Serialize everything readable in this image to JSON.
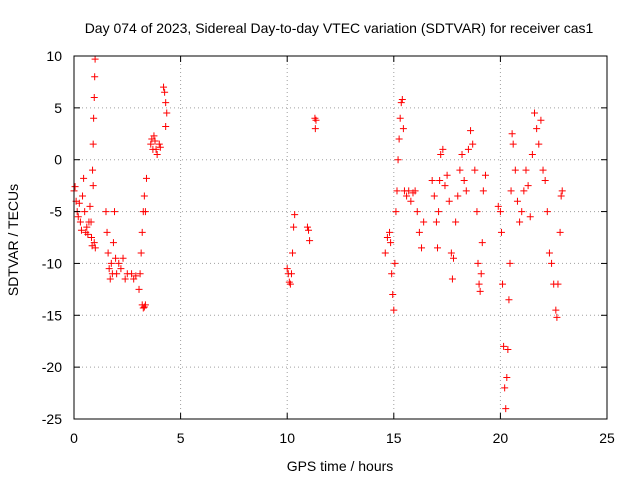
{
  "chart_data": {
    "type": "scatter",
    "title": "Day 074 of 2023, Sidereal Day-to-day VTEC variation (SDTVAR) for receiver cas1",
    "xlabel": "GPS time / hours",
    "ylabel": "SDTVAR / TECUs",
    "xlim": [
      0,
      25
    ],
    "ylim": [
      -25,
      10
    ],
    "xticks": [
      0,
      5,
      10,
      15,
      20,
      25
    ],
    "yticks": [
      -25,
      -20,
      -15,
      -10,
      -5,
      0,
      5,
      10
    ],
    "grid": true,
    "marker": "+",
    "color": "#ff0000",
    "segments": [
      {
        "name": "a",
        "points": [
          [
            0.0,
            -3.0
          ],
          [
            0.05,
            -2.6
          ],
          [
            0.1,
            -4.0
          ],
          [
            0.15,
            -5.0
          ],
          [
            0.2,
            -5.5
          ],
          [
            0.25,
            -4.2
          ],
          [
            0.3,
            -6.0
          ],
          [
            0.35,
            -6.8
          ],
          [
            0.4,
            -3.5
          ],
          [
            0.45,
            -1.8
          ],
          [
            0.5,
            -5.0
          ],
          [
            0.55,
            -7.0
          ],
          [
            0.6,
            -6.5
          ],
          [
            0.65,
            -7.2
          ],
          [
            0.7,
            -6.0
          ],
          [
            0.75,
            -4.5
          ]
        ]
      },
      {
        "name": "b",
        "points": [
          [
            0.8,
            -6.0
          ],
          [
            0.82,
            -7.5
          ],
          [
            0.85,
            -8.3
          ],
          [
            0.87,
            -1.0
          ],
          [
            0.9,
            1.5
          ],
          [
            0.92,
            4.0
          ],
          [
            0.95,
            6.0
          ],
          [
            0.97,
            8.0
          ],
          [
            0.99,
            9.7
          ],
          [
            0.9,
            -2.5
          ],
          [
            0.95,
            -8.0
          ],
          [
            1.0,
            -8.5
          ]
        ]
      },
      {
        "name": "c",
        "points": [
          [
            1.5,
            -5.0
          ],
          [
            1.55,
            -7.0
          ],
          [
            1.6,
            -9.0
          ],
          [
            1.65,
            -10.5
          ],
          [
            1.7,
            -11.5
          ],
          [
            1.75,
            -10.0
          ],
          [
            1.8,
            -11.0
          ],
          [
            1.85,
            -8.0
          ],
          [
            1.9,
            -5.0
          ],
          [
            1.95,
            -9.5
          ],
          [
            2.0,
            -11.0
          ],
          [
            2.1,
            -10.0
          ],
          [
            2.2,
            -10.5
          ],
          [
            2.3,
            -9.5
          ],
          [
            2.4,
            -11.5
          ],
          [
            2.5,
            -11.0
          ]
        ]
      },
      {
        "name": "d",
        "points": [
          [
            2.7,
            -11.0
          ],
          [
            2.8,
            -11.5
          ],
          [
            2.9,
            -11.2
          ]
        ]
      },
      {
        "name": "e",
        "points": [
          [
            3.05,
            -12.5
          ],
          [
            3.1,
            -11.0
          ],
          [
            3.15,
            -9.0
          ],
          [
            3.2,
            -7.0
          ],
          [
            3.25,
            -5.0
          ],
          [
            3.3,
            -3.5
          ],
          [
            3.35,
            -5.0
          ],
          [
            3.4,
            -1.8
          ],
          [
            3.2,
            -14.0
          ],
          [
            3.25,
            -14.3
          ],
          [
            3.3,
            -14.2
          ],
          [
            3.35,
            -14.0
          ]
        ]
      },
      {
        "name": "f",
        "points": [
          [
            3.6,
            1.5
          ],
          [
            3.65,
            2.0
          ],
          [
            3.7,
            1.0
          ],
          [
            3.75,
            2.3
          ],
          [
            3.8,
            1.8
          ],
          [
            3.85,
            1.0
          ],
          [
            3.9,
            0.5
          ],
          [
            4.0,
            1.5
          ],
          [
            4.05,
            1.2
          ]
        ]
      },
      {
        "name": "g",
        "points": [
          [
            4.2,
            7.0
          ],
          [
            4.25,
            6.5
          ],
          [
            4.3,
            5.5
          ],
          [
            4.35,
            4.5
          ],
          [
            4.3,
            3.2
          ]
        ]
      },
      {
        "name": "h",
        "points": [
          [
            10.0,
            -10.5
          ],
          [
            10.05,
            -11.0
          ],
          [
            10.1,
            -11.8
          ],
          [
            10.15,
            -12.0
          ],
          [
            10.2,
            -11.0
          ],
          [
            10.25,
            -9.0
          ],
          [
            10.3,
            -6.5
          ],
          [
            10.35,
            -5.3
          ]
        ]
      },
      {
        "name": "i",
        "points": [
          [
            10.95,
            -6.5
          ],
          [
            11.0,
            -6.8
          ],
          [
            11.05,
            -7.8
          ]
        ]
      },
      {
        "name": "j",
        "points": [
          [
            11.3,
            4.0
          ],
          [
            11.35,
            3.8
          ],
          [
            11.32,
            3.0
          ]
        ]
      },
      {
        "name": "k",
        "points": [
          [
            14.6,
            -9.0
          ],
          [
            14.7,
            -7.5
          ],
          [
            14.8,
            -7.0
          ],
          [
            14.85,
            -8.0
          ],
          [
            14.9,
            -11.0
          ],
          [
            14.95,
            -13.0
          ],
          [
            15.0,
            -14.5
          ],
          [
            15.05,
            -10.0
          ],
          [
            15.1,
            -5.0
          ],
          [
            15.15,
            -3.0
          ],
          [
            15.2,
            0.0
          ],
          [
            15.25,
            2.0
          ],
          [
            15.3,
            4.0
          ],
          [
            15.35,
            5.5
          ],
          [
            15.4,
            5.8
          ],
          [
            15.45,
            3.0
          ],
          [
            15.5,
            -3.0
          ],
          [
            15.6,
            -3.5
          ],
          [
            15.7,
            -3.0
          ],
          [
            15.8,
            -4.0
          ],
          [
            15.9,
            -3.2
          ],
          [
            16.0,
            -3.0
          ],
          [
            16.1,
            -5.0
          ],
          [
            16.2,
            -7.0
          ],
          [
            16.3,
            -8.5
          ],
          [
            16.4,
            -6.0
          ]
        ]
      },
      {
        "name": "l",
        "points": [
          [
            16.8,
            -2.0
          ],
          [
            16.9,
            -3.5
          ],
          [
            17.0,
            -6.0
          ],
          [
            17.05,
            -8.5
          ],
          [
            17.1,
            -5.0
          ],
          [
            17.15,
            -2.0
          ],
          [
            17.2,
            0.5
          ],
          [
            17.3,
            1.0
          ],
          [
            17.4,
            -2.5
          ],
          [
            17.5,
            -1.5
          ],
          [
            17.6,
            -4.0
          ],
          [
            17.7,
            -9.0
          ],
          [
            17.75,
            -11.5
          ],
          [
            17.8,
            -9.5
          ],
          [
            17.9,
            -6.0
          ],
          [
            18.0,
            -3.5
          ],
          [
            18.1,
            -1.0
          ],
          [
            18.2,
            0.5
          ],
          [
            18.3,
            -2.0
          ],
          [
            18.4,
            -3.0
          ],
          [
            18.5,
            1.0
          ],
          [
            18.6,
            2.8
          ],
          [
            18.7,
            1.5
          ],
          [
            18.8,
            -1.0
          ],
          [
            18.9,
            -5.0
          ],
          [
            18.95,
            -10.0
          ],
          [
            19.0,
            -12.0
          ],
          [
            19.05,
            -12.7
          ],
          [
            19.1,
            -11.0
          ],
          [
            19.15,
            -8.0
          ],
          [
            19.2,
            -3.0
          ],
          [
            19.3,
            -1.5
          ]
        ]
      },
      {
        "name": "m",
        "points": [
          [
            19.9,
            -4.5
          ],
          [
            20.0,
            -5.0
          ],
          [
            20.05,
            -7.0
          ],
          [
            20.1,
            -12.0
          ],
          [
            20.15,
            -18.0
          ],
          [
            20.2,
            -22.0
          ],
          [
            20.25,
            -24.0
          ],
          [
            20.3,
            -21.0
          ],
          [
            20.35,
            -18.3
          ],
          [
            20.4,
            -13.5
          ],
          [
            20.45,
            -10.0
          ],
          [
            20.5,
            -3.0
          ],
          [
            20.55,
            2.5
          ],
          [
            20.6,
            1.5
          ],
          [
            20.7,
            -1.0
          ],
          [
            20.8,
            -4.0
          ],
          [
            20.9,
            -6.0
          ],
          [
            21.0,
            -5.0
          ],
          [
            21.1,
            -3.0
          ],
          [
            21.2,
            -1.0
          ],
          [
            21.3,
            -2.5
          ],
          [
            21.4,
            -5.5
          ],
          [
            21.5,
            0.5
          ],
          [
            21.6,
            4.5
          ],
          [
            21.7,
            3.0
          ],
          [
            21.8,
            1.5
          ],
          [
            21.9,
            3.8
          ],
          [
            22.0,
            -1.0
          ],
          [
            22.1,
            -2.0
          ],
          [
            22.2,
            -5.0
          ],
          [
            22.3,
            -9.0
          ],
          [
            22.4,
            -10.0
          ],
          [
            22.5,
            -12.0
          ],
          [
            22.6,
            -14.5
          ],
          [
            22.65,
            -15.2
          ],
          [
            22.7,
            -12.0
          ],
          [
            22.8,
            -7.0
          ],
          [
            22.85,
            -3.5
          ],
          [
            22.9,
            -3.0
          ]
        ]
      }
    ]
  }
}
